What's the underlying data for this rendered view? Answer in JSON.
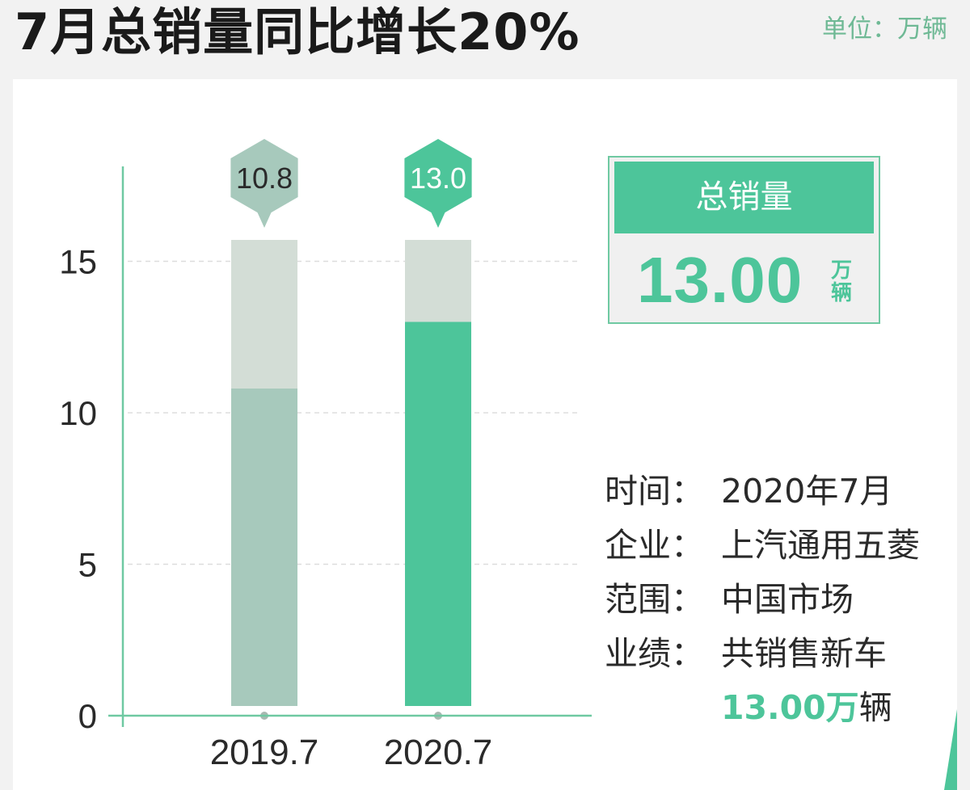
{
  "title": "7月总销量同比增长20%",
  "unit_label": "单位：万辆",
  "colors": {
    "accent": "#4dc59a",
    "muted_bar": "#a7c9bc",
    "bar_track": "#d3ddd6",
    "axis": "#6fc9a2",
    "grid": "#dddddd"
  },
  "chart_data": {
    "type": "bar",
    "categories": [
      "2019.7",
      "2020.7"
    ],
    "values": [
      10.8,
      13.0
    ],
    "value_labels": [
      "10.8",
      "13.0"
    ],
    "title": "",
    "xlabel": "",
    "ylabel": "",
    "ylim": [
      0,
      15
    ],
    "yticks": [
      0,
      5,
      10,
      15
    ],
    "grid": true,
    "bar_colors": [
      "#a7c9bc",
      "#4dc59a"
    ]
  },
  "card": {
    "heading": "总销量",
    "value": "13.00",
    "unit_line1": "万",
    "unit_line2": "辆"
  },
  "info": {
    "time_label": "时间：",
    "time_value": "2020年7月",
    "company_label": "企业：",
    "company_value": "上汽通用五菱",
    "scope_label": "范围：",
    "scope_value": "中国市场",
    "result_label": "业绩：",
    "result_value": "共销售新车",
    "total_number": "13.00万",
    "total_unit": "辆"
  }
}
